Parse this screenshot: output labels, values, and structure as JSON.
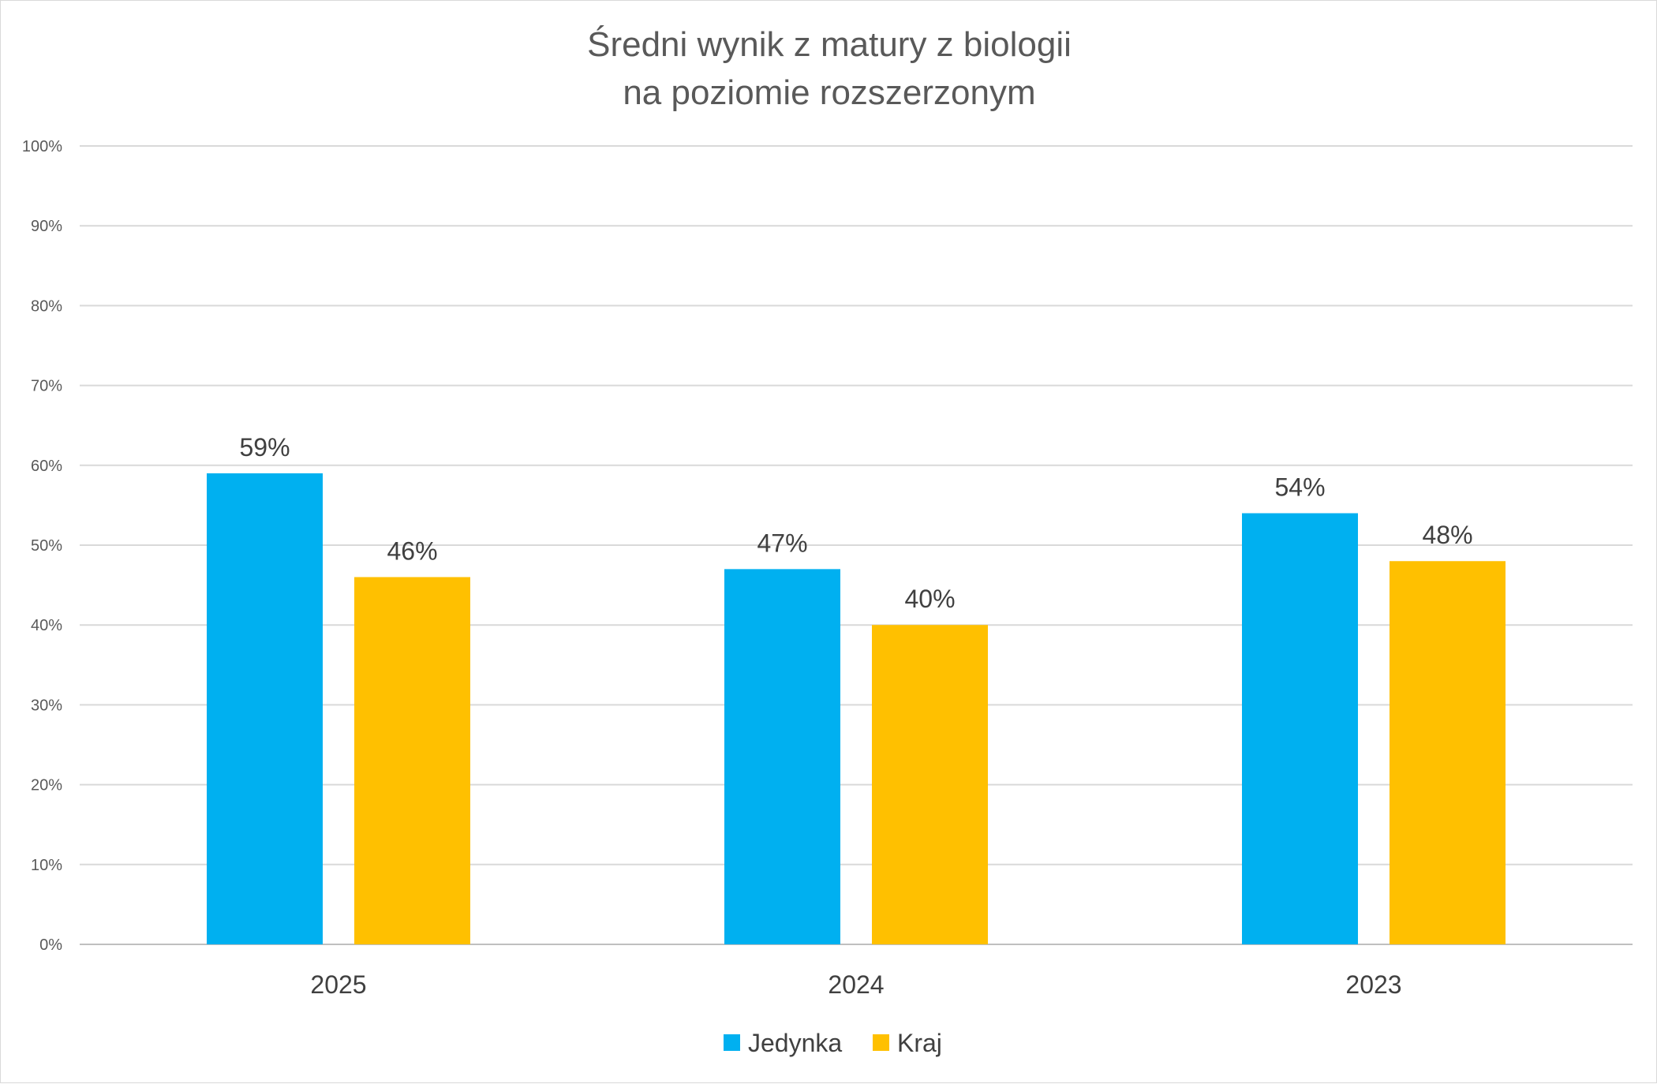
{
  "chart_data": {
    "type": "bar",
    "title": [
      "Średni wynik z matury z biologii",
      "na poziomie rozszerzonym"
    ],
    "categories": [
      "2025",
      "2024",
      "2023"
    ],
    "series": [
      {
        "name": "Jedynka",
        "color": "#00b0f0",
        "values": [
          59,
          47,
          54
        ],
        "labels": [
          "59%",
          "47%",
          "54%"
        ]
      },
      {
        "name": "Kraj",
        "color": "#ffc000",
        "values": [
          46,
          40,
          48
        ],
        "labels": [
          "46%",
          "40%",
          "48%"
        ]
      }
    ],
    "ylim": [
      0,
      100
    ],
    "yticks": [
      0,
      10,
      20,
      30,
      40,
      50,
      60,
      70,
      80,
      90,
      100
    ],
    "ytick_labels": [
      "0%",
      "10%",
      "20%",
      "30%",
      "40%",
      "50%",
      "60%",
      "70%",
      "80%",
      "90%",
      "100%"
    ],
    "xlabel": "",
    "ylabel": "",
    "grid": true,
    "legend_position": "bottom"
  }
}
